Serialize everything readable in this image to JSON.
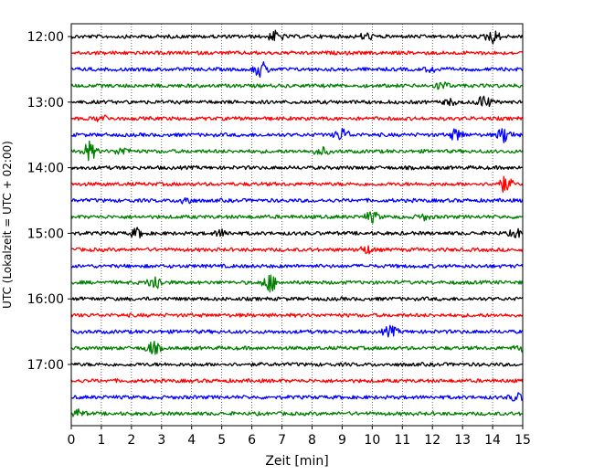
{
  "chart_data": {
    "type": "line",
    "xlabel": "Zeit  [min]",
    "ylabel": "UTC (Lokalzeit = UTC + 02:00)",
    "xlim": [
      0,
      15
    ],
    "x_ticks": [
      "0",
      "1",
      "2",
      "3",
      "4",
      "5",
      "6",
      "7",
      "8",
      "9",
      "10",
      "11",
      "12",
      "13",
      "14",
      "15"
    ],
    "y_ticks": [
      "12:00",
      "13:00",
      "14:00",
      "15:00",
      "16:00",
      "17:00"
    ],
    "grid": "vertical dotted lines at each minute",
    "trace_interval_minutes": 15,
    "trace_start_utc": "12:00",
    "trace_colors": [
      "#000000",
      "#ff0000",
      "#0000ff",
      "#008000"
    ],
    "traces": [
      {
        "start": "12:00",
        "color": "#000000"
      },
      {
        "start": "12:15",
        "color": "#ff0000"
      },
      {
        "start": "12:30",
        "color": "#0000ff"
      },
      {
        "start": "12:45",
        "color": "#008000"
      },
      {
        "start": "13:00",
        "color": "#000000"
      },
      {
        "start": "13:15",
        "color": "#ff0000"
      },
      {
        "start": "13:30",
        "color": "#0000ff"
      },
      {
        "start": "13:45",
        "color": "#008000"
      },
      {
        "start": "14:00",
        "color": "#000000"
      },
      {
        "start": "14:15",
        "color": "#ff0000"
      },
      {
        "start": "14:30",
        "color": "#0000ff"
      },
      {
        "start": "14:45",
        "color": "#008000"
      },
      {
        "start": "15:00",
        "color": "#000000"
      },
      {
        "start": "15:15",
        "color": "#ff0000"
      },
      {
        "start": "15:30",
        "color": "#0000ff"
      },
      {
        "start": "15:45",
        "color": "#008000"
      },
      {
        "start": "16:00",
        "color": "#000000"
      },
      {
        "start": "16:15",
        "color": "#ff0000"
      },
      {
        "start": "16:30",
        "color": "#0000ff"
      },
      {
        "start": "16:45",
        "color": "#008000"
      },
      {
        "start": "17:00",
        "color": "#000000"
      },
      {
        "start": "17:15",
        "color": "#ff0000"
      },
      {
        "start": "17:30",
        "color": "#0000ff"
      },
      {
        "start": "17:45",
        "color": "#008000"
      }
    ],
    "events": [
      {
        "trace": 0,
        "minute": 6.8,
        "amp": 0.4
      },
      {
        "trace": 0,
        "minute": 9.8,
        "amp": 0.25
      },
      {
        "trace": 0,
        "minute": 14.0,
        "amp": 0.5
      },
      {
        "trace": 2,
        "minute": 6.3,
        "amp": 0.6
      },
      {
        "trace": 2,
        "minute": 12.0,
        "amp": 0.2
      },
      {
        "trace": 3,
        "minute": 12.3,
        "amp": 0.3
      },
      {
        "trace": 4,
        "minute": 13.7,
        "amp": 0.5
      },
      {
        "trace": 4,
        "minute": 12.6,
        "amp": 0.2
      },
      {
        "trace": 5,
        "minute": 1.0,
        "amp": 0.25
      },
      {
        "trace": 6,
        "minute": 9.0,
        "amp": 0.5
      },
      {
        "trace": 6,
        "minute": 12.8,
        "amp": 0.45
      },
      {
        "trace": 6,
        "minute": 14.4,
        "amp": 0.6
      },
      {
        "trace": 7,
        "minute": 0.6,
        "amp": 0.7
      },
      {
        "trace": 7,
        "minute": 1.7,
        "amp": 0.3
      },
      {
        "trace": 7,
        "minute": 8.3,
        "amp": 0.3
      },
      {
        "trace": 9,
        "minute": 14.4,
        "amp": 0.6
      },
      {
        "trace": 10,
        "minute": 3.8,
        "amp": 0.3
      },
      {
        "trace": 11,
        "minute": 10.0,
        "amp": 0.4
      },
      {
        "trace": 11,
        "minute": 11.7,
        "amp": 0.2
      },
      {
        "trace": 12,
        "minute": 2.2,
        "amp": 0.35
      },
      {
        "trace": 12,
        "minute": 5.0,
        "amp": 0.25
      },
      {
        "trace": 12,
        "minute": 14.8,
        "amp": 0.3
      },
      {
        "trace": 13,
        "minute": 9.8,
        "amp": 0.3
      },
      {
        "trace": 15,
        "minute": 2.8,
        "amp": 0.6
      },
      {
        "trace": 15,
        "minute": 6.6,
        "amp": 0.7
      },
      {
        "trace": 18,
        "minute": 10.6,
        "amp": 0.4
      },
      {
        "trace": 19,
        "minute": 2.7,
        "amp": 0.5
      },
      {
        "trace": 19,
        "minute": 15.0,
        "amp": 0.3
      },
      {
        "trace": 22,
        "minute": 14.8,
        "amp": 0.3
      },
      {
        "trace": 23,
        "minute": 0.2,
        "amp": 0.3
      }
    ]
  }
}
